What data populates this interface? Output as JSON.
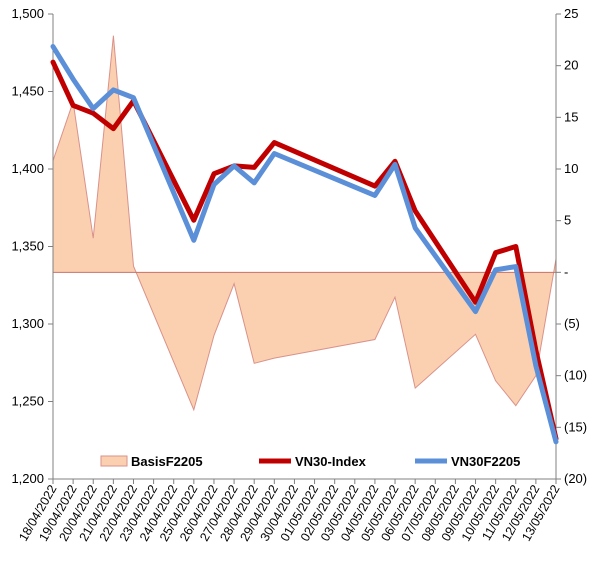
{
  "chart_data": {
    "type": "line",
    "categories": [
      "18/04/2022",
      "19/04/2022",
      "20/04/2022",
      "21/04/2022",
      "22/04/2022",
      "23/04/2022",
      "24/04/2022",
      "25/04/2022",
      "26/04/2022",
      "27/04/2022",
      "28/04/2022",
      "29/04/2022",
      "30/04/2022",
      "01/05/2022",
      "02/05/2022",
      "03/05/2022",
      "04/05/2022",
      "05/05/2022",
      "06/05/2022",
      "07/05/2022",
      "08/05/2022",
      "09/05/2022",
      "10/05/2022",
      "11/05/2022",
      "12/05/2022",
      "13/05/2022"
    ],
    "left_axis": {
      "min": 1200,
      "max": 1500,
      "ticks": [
        "1,200",
        "1,250",
        "1,300",
        "1,350",
        "1,400",
        "1,450",
        "1,500"
      ],
      "tick_values": [
        1200,
        1250,
        1300,
        1350,
        1400,
        1450,
        1500
      ]
    },
    "right_axis": {
      "min": -20,
      "max": 25,
      "ticks": [
        "(20)",
        "(15)",
        "(10)",
        "(5)",
        "-",
        "5",
        "10",
        "15",
        "20",
        "25"
      ],
      "tick_values": [
        -20,
        -15,
        -10,
        -5,
        0,
        5,
        10,
        15,
        20,
        25
      ]
    },
    "series": [
      {
        "name": "BasisF2205",
        "type": "area",
        "axis": "right",
        "color": "#fbd0b0",
        "edge": "#d9928a",
        "points": [
          [
            0,
            10.8
          ],
          [
            1,
            16.5
          ],
          [
            2,
            3.3
          ],
          [
            3,
            22.9
          ],
          [
            4,
            0.6
          ],
          [
            7,
            -13.3
          ],
          [
            8,
            -6.1
          ],
          [
            9,
            -1.1
          ],
          [
            10,
            -8.8
          ],
          [
            11,
            -8.3
          ],
          [
            16,
            -6.5
          ],
          [
            17,
            -2.4
          ],
          [
            18,
            -11.2
          ],
          [
            21,
            -6.0
          ],
          [
            22,
            -10.5
          ],
          [
            23,
            -12.9
          ],
          [
            24,
            -10.0
          ],
          [
            25,
            1.3
          ]
        ]
      },
      {
        "name": "VN30-Index",
        "type": "line",
        "axis": "left",
        "color": "#c00000",
        "points": [
          [
            0,
            1469
          ],
          [
            1,
            1441
          ],
          [
            2,
            1436
          ],
          [
            3,
            1426
          ],
          [
            4,
            1444
          ],
          [
            7,
            1367
          ],
          [
            8,
            1397
          ],
          [
            9,
            1402
          ],
          [
            10,
            1401
          ],
          [
            11,
            1417
          ],
          [
            16,
            1389
          ],
          [
            17,
            1405
          ],
          [
            18,
            1373
          ],
          [
            21,
            1314
          ],
          [
            22,
            1346
          ],
          [
            23,
            1350
          ],
          [
            24,
            1283
          ],
          [
            25,
            1226
          ]
        ]
      },
      {
        "name": "VN30F2205",
        "type": "line",
        "axis": "left",
        "color": "#5b8fd8",
        "points": [
          [
            0,
            1479
          ],
          [
            1,
            1458
          ],
          [
            2,
            1439
          ],
          [
            3,
            1451
          ],
          [
            4,
            1446
          ],
          [
            7,
            1354
          ],
          [
            8,
            1390
          ],
          [
            9,
            1402
          ],
          [
            10,
            1391
          ],
          [
            11,
            1410
          ],
          [
            16,
            1383
          ],
          [
            17,
            1403
          ],
          [
            18,
            1362
          ],
          [
            21,
            1308
          ],
          [
            22,
            1335
          ],
          [
            23,
            1337
          ],
          [
            24,
            1273
          ],
          [
            25,
            1224
          ]
        ]
      }
    ],
    "legend": {
      "placement": "bottom-inside",
      "items": [
        {
          "label": "BasisF2205",
          "swatch": "area",
          "color": "#fbd0b0"
        },
        {
          "label": "VN30-Index",
          "swatch": "line",
          "color": "#c00000"
        },
        {
          "label": "VN30F2205",
          "swatch": "line",
          "color": "#5b8fd8"
        }
      ]
    },
    "grid": false
  }
}
